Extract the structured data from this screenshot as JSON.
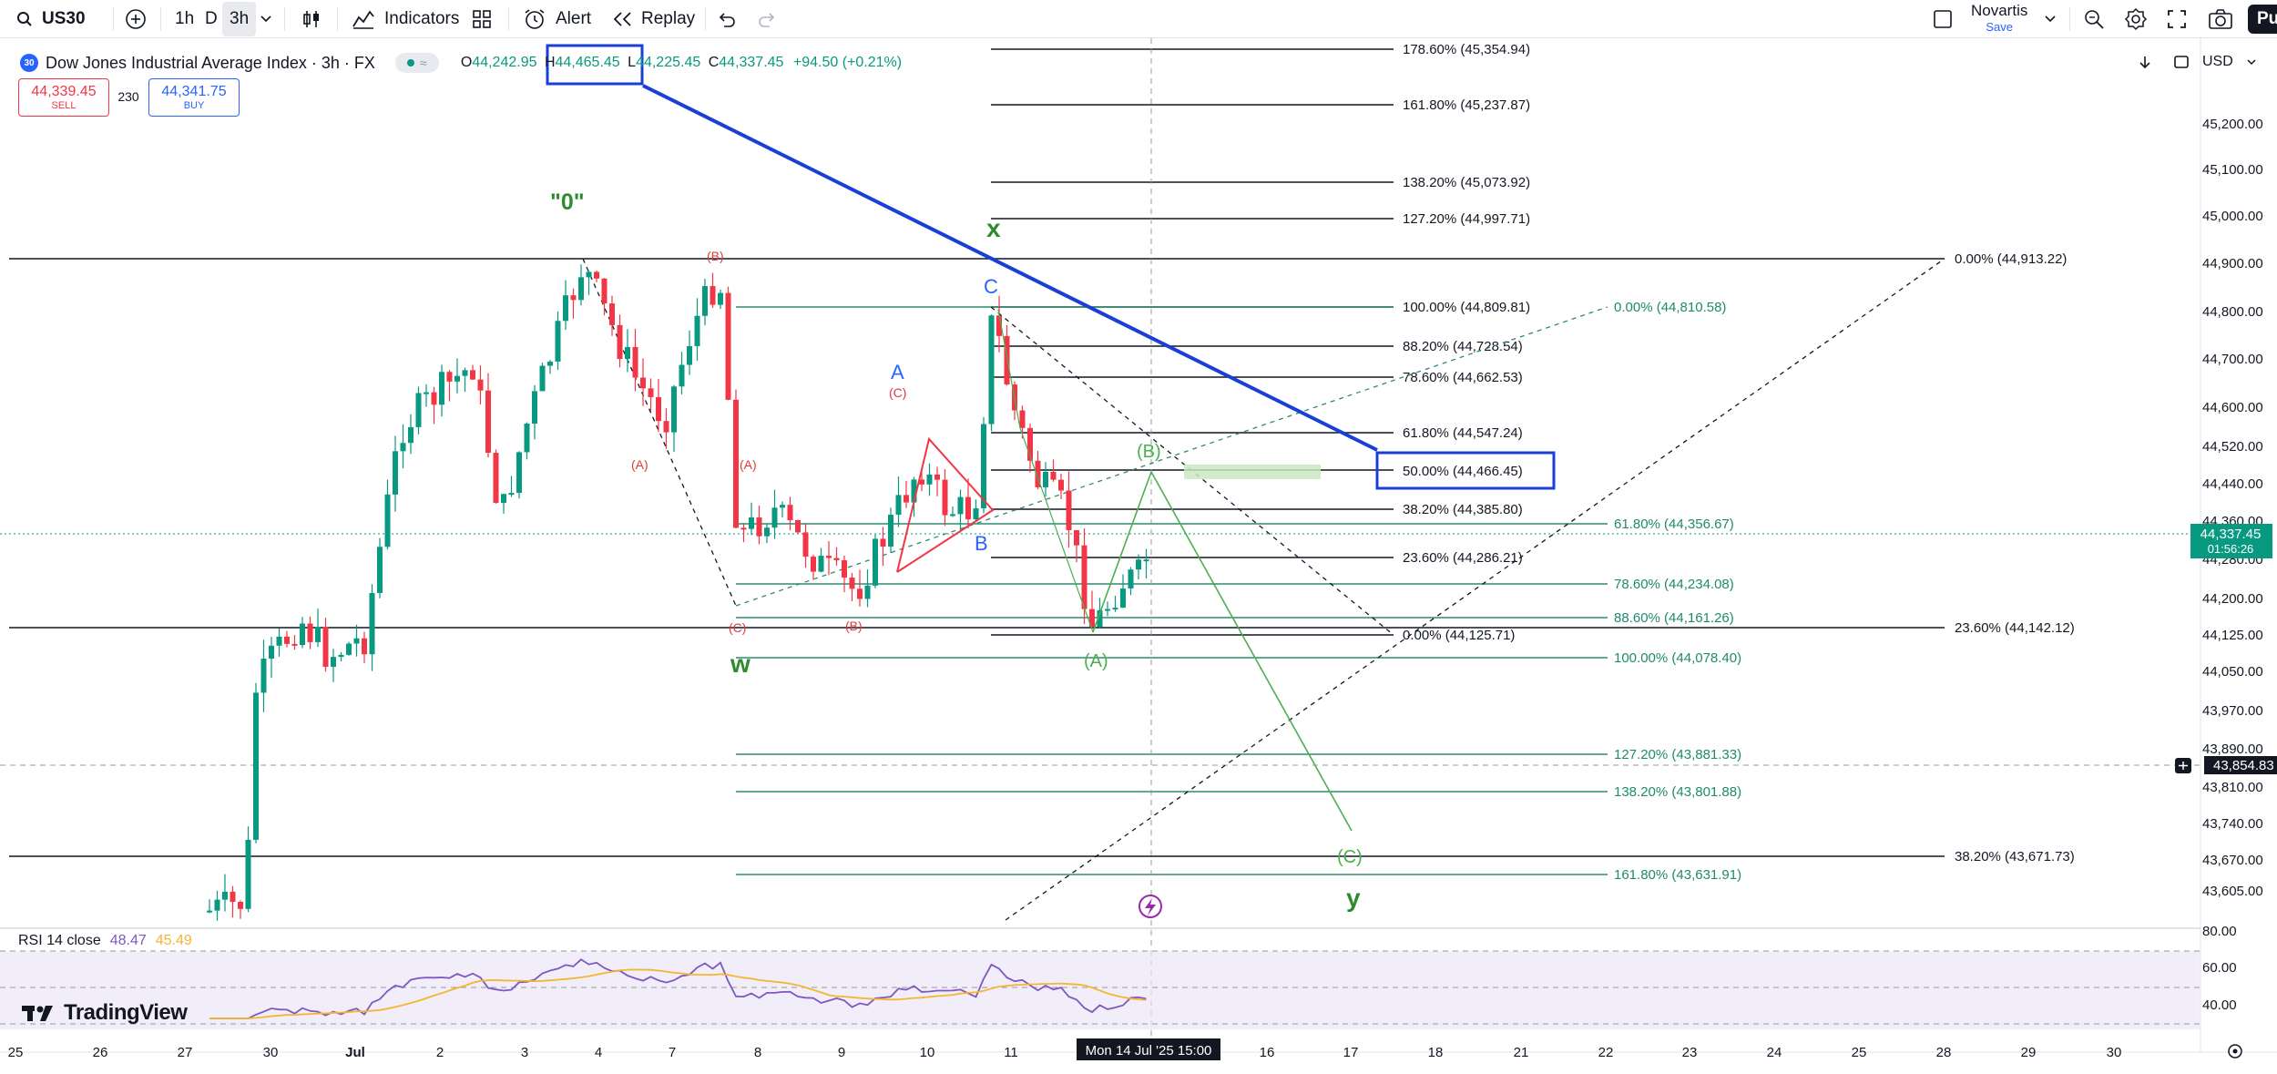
{
  "toolbar": {
    "symbol": "US30",
    "tf_1h": "1h",
    "tf_d": "D",
    "tf_3h": "3h",
    "indicators": "Indicators",
    "alert": "Alert",
    "replay": "Replay",
    "layout_name": "Novartis",
    "layout_save": "Save",
    "publish": "Pu"
  },
  "legend": {
    "badge": "30",
    "title": "Dow Jones Industrial Average Index · 3h · FX",
    "o_label": "O",
    "o_val": "44,242.95",
    "h_label": "H",
    "h_val": "44,465.45",
    "l_label": "L",
    "l_val": "44,225.45",
    "c_label": "C",
    "c_val": "44,337.45",
    "chg": "+94.50 (+0.21%)"
  },
  "sell": {
    "price": "44,339.45",
    "label": "SELL"
  },
  "spread": "230",
  "buy": {
    "price": "44,341.75",
    "label": "BUY"
  },
  "currency": "USD",
  "price_axis": [
    "45,200.00",
    "45,100.00",
    "45,000.00",
    "44,900.00",
    "44,800.00",
    "44,700.00",
    "44,600.00",
    "44,520.00",
    "44,440.00",
    "44,360.00",
    "44,280.00",
    "44,200.00",
    "44,125.00",
    "44,050.00",
    "43,970.00",
    "43,890.00",
    "43,810.00",
    "43,740.00",
    "43,670.00",
    "43,605.00"
  ],
  "last_price": {
    "value": "44,337.45",
    "countdown": "01:56:26",
    "color": "#089981"
  },
  "crosshair_price": "43,854.83",
  "rsi": {
    "label": "RSI 14 close",
    "value": "48.47",
    "ma_value": "45.49",
    "axis": [
      "80.00",
      "60.00",
      "40.00"
    ]
  },
  "logo": "TradingView",
  "time_axis": [
    "25",
    "26",
    "27",
    "30",
    "Jul",
    "2",
    "3",
    "4",
    "7",
    "8",
    "9",
    "10",
    "11",
    "16",
    "17",
    "18",
    "21",
    "22",
    "23",
    "24",
    "25",
    "28",
    "29",
    "30"
  ],
  "crosshair_time": "Mon 14 Jul '25  15:00",
  "fib_black": [
    "178.60% (45,354.94)",
    "161.80% (45,237.87)",
    "138.20% (45,073.92)",
    "127.20% (44,997.71)",
    "100.00% (44,809.81)",
    "88.20% (44,728.54)",
    "78.60% (44,662.53)",
    "61.80% (44,547.24)",
    "50.00% (44,466.45)",
    "38.20% (44,385.80)",
    "23.60% (44,286.21)",
    "0.00% (44,125.71)"
  ],
  "fib_green": [
    "0.00% (44,810.58)",
    "61.80% (44,356.67)",
    "78.60% (44,234.08)",
    "88.60% (44,161.26)",
    "100.00% (44,078.40)",
    "127.20% (43,881.33)",
    "138.20% (43,801.88)",
    "161.80% (43,631.91)"
  ],
  "fib_long": [
    "0.00% (44,913.22)",
    "23.60% (44,142.12)",
    "38.20% (43,671.73)"
  ],
  "wave_labels": {
    "zero": "\"0\"",
    "x": "x",
    "w": "w",
    "y": "y",
    "C": "C",
    "A": "A",
    "B": "B",
    "pB": "(B)",
    "pA": "(A)",
    "pC": "(C)",
    "rB1": "(B)",
    "rA1": "(A)",
    "rA2": "(A)",
    "rC1": "(C)",
    "rB2": "(B)",
    "rC2": "(C)"
  },
  "colors": {
    "up": "#089981",
    "down": "#f23645",
    "annotation_blue": "#1a3fd6",
    "wave_green": "#2e8b2e",
    "wave_light": "#4caf50",
    "wave_red": "#e03a3a",
    "wave_blue": "#2962ff",
    "rsi_line": "#7e57c2",
    "rsi_ma": "#f5b530"
  }
}
